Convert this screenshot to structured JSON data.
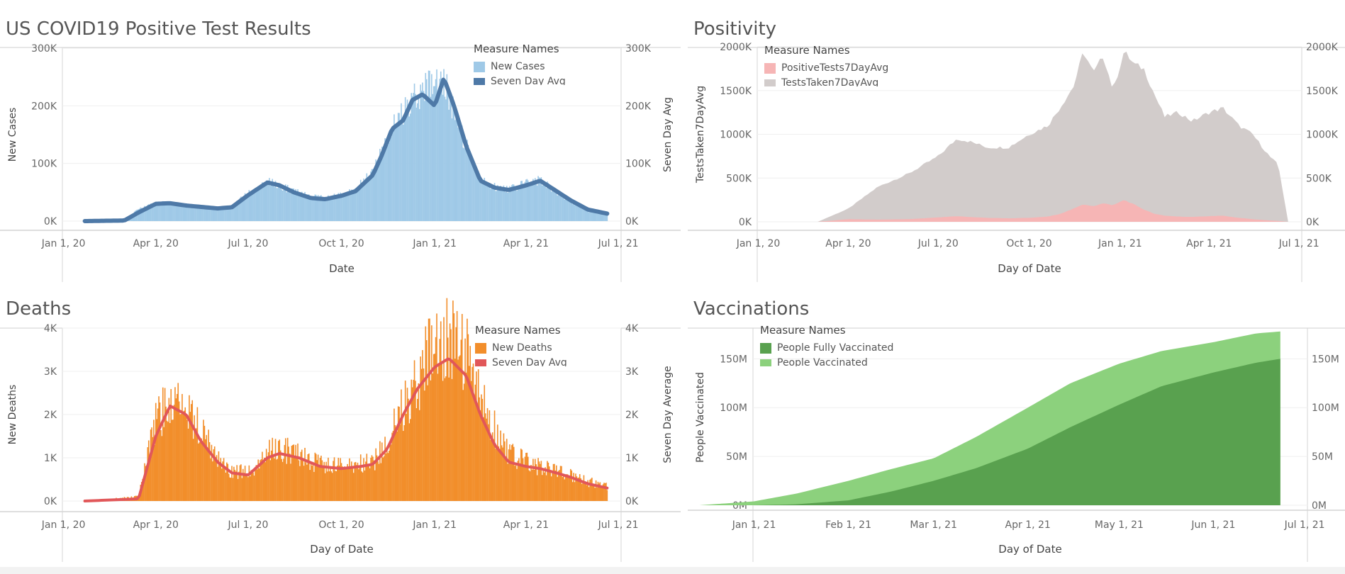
{
  "chart_data": [
    {
      "id": "cases",
      "type": "bar",
      "title": "US COVID19 Positive Test Results",
      "xlabel": "Date",
      "ylabel": "New Cases",
      "ylabel_right": "Seven Day Avg",
      "xticks": [
        "Jan 1, 20",
        "Apr 1, 20",
        "Jul 1, 20",
        "Oct 1, 20",
        "Jan 1, 21",
        "Apr 1, 21",
        "Jul 1, 21"
      ],
      "yticks": [
        "0K",
        "100K",
        "200K",
        "300K"
      ],
      "ylim": [
        0,
        300000
      ],
      "legend": {
        "title": "Measure Names",
        "items": [
          {
            "label": "New Cases",
            "color": "#9fc9e7"
          },
          {
            "label": "Seven Day Avg",
            "color": "#4e79a7"
          }
        ],
        "position": "top-right"
      },
      "x": [
        "2020-01-22",
        "2020-03-01",
        "2020-03-15",
        "2020-04-01",
        "2020-04-15",
        "2020-05-01",
        "2020-06-01",
        "2020-06-15",
        "2020-07-01",
        "2020-07-20",
        "2020-08-01",
        "2020-08-15",
        "2020-09-01",
        "2020-09-15",
        "2020-10-01",
        "2020-10-15",
        "2020-11-01",
        "2020-11-10",
        "2020-11-20",
        "2020-12-01",
        "2020-12-10",
        "2020-12-20",
        "2021-01-01",
        "2021-01-10",
        "2021-01-20",
        "2021-02-01",
        "2021-02-15",
        "2021-03-01",
        "2021-03-15",
        "2021-04-01",
        "2021-04-15",
        "2021-05-01",
        "2021-05-15",
        "2021-06-01",
        "2021-06-20"
      ],
      "series": [
        {
          "name": "New Cases",
          "color": "#9fc9e7",
          "style": "bars",
          "values": [
            0,
            2000,
            20000,
            30000,
            32000,
            28000,
            22000,
            25000,
            48000,
            68000,
            62000,
            52000,
            42000,
            40000,
            45000,
            55000,
            85000,
            120000,
            160000,
            190000,
            215000,
            225000,
            240000,
            250000,
            190000,
            130000,
            70000,
            60000,
            55000,
            65000,
            72000,
            50000,
            35000,
            18000,
            12000
          ]
        },
        {
          "name": "Seven Day Avg",
          "color": "#4e79a7",
          "style": "line",
          "values": [
            0,
            1000,
            15000,
            30000,
            31000,
            27000,
            22000,
            24000,
            45000,
            67000,
            62000,
            50000,
            40000,
            38000,
            44000,
            52000,
            80000,
            115000,
            160000,
            175000,
            210000,
            220000,
            200000,
            248000,
            200000,
            130000,
            70000,
            58000,
            54000,
            62000,
            70000,
            52000,
            36000,
            20000,
            13000
          ]
        }
      ]
    },
    {
      "id": "positivity",
      "type": "area",
      "title": "Positivity",
      "xlabel": "Day of Date",
      "ylabel": "TestsTaken7DayAvg",
      "ylabel_right": "",
      "xticks": [
        "Jan 1, 20",
        "Apr 1, 20",
        "Jul 1, 20",
        "Oct 1, 20",
        "Jan 1, 21",
        "Apr 1, 21",
        "Jul 1, 21"
      ],
      "yticks": [
        "0K",
        "500K",
        "1000K",
        "1500K",
        "2000K"
      ],
      "ylim": [
        0,
        2000000
      ],
      "legend": {
        "title": "Measure Names",
        "items": [
          {
            "label": "PositiveTests7DayAvg",
            "color": "#f6b5b5"
          },
          {
            "label": "TestsTaken7DayAvg",
            "color": "#d2cccb"
          }
        ],
        "position": "top-left"
      },
      "x": [
        "2020-03-01",
        "2020-04-01",
        "2020-05-01",
        "2020-06-01",
        "2020-07-01",
        "2020-07-20",
        "2020-08-01",
        "2020-08-20",
        "2020-09-10",
        "2020-10-01",
        "2020-10-20",
        "2020-11-01",
        "2020-11-15",
        "2020-11-25",
        "2020-12-05",
        "2020-12-15",
        "2020-12-25",
        "2021-01-05",
        "2021-01-15",
        "2021-01-25",
        "2021-02-05",
        "2021-02-15",
        "2021-03-01",
        "2021-03-15",
        "2021-04-01",
        "2021-04-15",
        "2021-05-01",
        "2021-05-15",
        "2021-06-01",
        "2021-06-10",
        "2021-06-20"
      ],
      "series": [
        {
          "name": "TestsTaken7DayAvg",
          "color": "#d2cccb",
          "style": "area",
          "values": [
            0,
            150000,
            400000,
            550000,
            750000,
            950000,
            920000,
            850000,
            850000,
            1000000,
            1100000,
            1300000,
            1550000,
            1950000,
            1700000,
            1900000,
            1500000,
            1950000,
            1800000,
            1750000,
            1450000,
            1200000,
            1250000,
            1150000,
            1250000,
            1300000,
            1100000,
            1000000,
            750000,
            650000,
            0
          ]
        },
        {
          "name": "PositiveTests7DayAvg",
          "color": "#f6b5b5",
          "style": "area",
          "values": [
            0,
            30000,
            25000,
            30000,
            50000,
            65000,
            55000,
            45000,
            40000,
            45000,
            60000,
            90000,
            150000,
            200000,
            180000,
            210000,
            190000,
            250000,
            200000,
            140000,
            90000,
            70000,
            60000,
            55000,
            65000,
            70000,
            45000,
            30000,
            15000,
            10000,
            0
          ]
        }
      ]
    },
    {
      "id": "deaths",
      "type": "bar",
      "title": "Deaths",
      "xlabel": "Day of Date",
      "ylabel": "New Deaths",
      "ylabel_right": "Seven Day Average",
      "xticks": [
        "Jan 1, 20",
        "Apr 1, 20",
        "Jul 1, 20",
        "Oct 1, 20",
        "Jan 1, 21",
        "Apr 1, 21",
        "Jul 1, 21"
      ],
      "yticks": [
        "0K",
        "1K",
        "2K",
        "3K",
        "4K"
      ],
      "ylim": [
        0,
        4000
      ],
      "legend": {
        "title": "Measure Names",
        "items": [
          {
            "label": "New Deaths",
            "color": "#f28e2b"
          },
          {
            "label": "Seven Day Avg",
            "color": "#e15759"
          }
        ],
        "position": "top-right"
      },
      "x": [
        "2020-01-22",
        "2020-03-15",
        "2020-04-01",
        "2020-04-15",
        "2020-05-01",
        "2020-05-15",
        "2020-06-01",
        "2020-06-15",
        "2020-07-01",
        "2020-07-20",
        "2020-08-01",
        "2020-08-20",
        "2020-09-10",
        "2020-10-01",
        "2020-10-20",
        "2020-11-01",
        "2020-11-15",
        "2020-12-01",
        "2020-12-15",
        "2021-01-01",
        "2021-01-15",
        "2021-02-01",
        "2021-02-15",
        "2021-03-01",
        "2021-03-15",
        "2021-04-01",
        "2021-04-15",
        "2021-05-01",
        "2021-05-15",
        "2021-06-01",
        "2021-06-20"
      ],
      "series": [
        {
          "name": "New Deaths",
          "color": "#f28e2b",
          "style": "bars",
          "values": [
            0,
            100,
            1800,
            2400,
            2200,
            1600,
            1000,
            700,
            650,
            1100,
            1250,
            1050,
            850,
            800,
            850,
            900,
            1300,
            2200,
            2800,
            3600,
            3900,
            3400,
            2300,
            1700,
            1100,
            900,
            800,
            700,
            600,
            450,
            350
          ]
        },
        {
          "name": "Seven Day Avg",
          "color": "#e15759",
          "style": "line",
          "values": [
            0,
            50,
            1500,
            2200,
            2000,
            1400,
            900,
            650,
            600,
            1000,
            1100,
            1000,
            800,
            750,
            800,
            850,
            1200,
            2000,
            2600,
            3100,
            3300,
            2900,
            2000,
            1300,
            900,
            800,
            750,
            650,
            550,
            400,
            300
          ]
        }
      ]
    },
    {
      "id": "vaccinations",
      "type": "area",
      "title": "Vaccinations",
      "xlabel": "Day of Date",
      "ylabel": "People Vaccinated",
      "ylabel_right": "",
      "xticks": [
        "Jan 1, 21",
        "Feb 1, 21",
        "Mar 1, 21",
        "Apr 1, 21",
        "May 1, 21",
        "Jun 1, 21",
        "Jul 1, 21"
      ],
      "yticks": [
        "0M",
        "50M",
        "100M",
        "150M"
      ],
      "ylim": [
        0,
        180000000
      ],
      "legend": {
        "title": "Measure Names",
        "items": [
          {
            "label": "People Fully Vaccinated",
            "color": "#59a14f"
          },
          {
            "label": "People Vaccinated",
            "color": "#8cd17d"
          }
        ],
        "position": "top-left"
      },
      "x": [
        "2020-12-14",
        "2021-01-01",
        "2021-01-15",
        "2021-02-01",
        "2021-02-15",
        "2021-03-01",
        "2021-03-15",
        "2021-04-01",
        "2021-04-15",
        "2021-05-01",
        "2021-05-15",
        "2021-06-01",
        "2021-06-15",
        "2021-06-23"
      ],
      "series": [
        {
          "name": "People Vaccinated",
          "color": "#8cd17d",
          "style": "area",
          "values": [
            0,
            4000000,
            12000000,
            25000000,
            37000000,
            48000000,
            70000000,
            100000000,
            125000000,
            145000000,
            158000000,
            167000000,
            176000000,
            178000000
          ]
        },
        {
          "name": "People Fully Vaccinated",
          "color": "#59a14f",
          "style": "area",
          "values": [
            0,
            0,
            1000000,
            5000000,
            14000000,
            25000000,
            38000000,
            58000000,
            80000000,
            103000000,
            122000000,
            136000000,
            146000000,
            150000000
          ]
        }
      ]
    }
  ]
}
